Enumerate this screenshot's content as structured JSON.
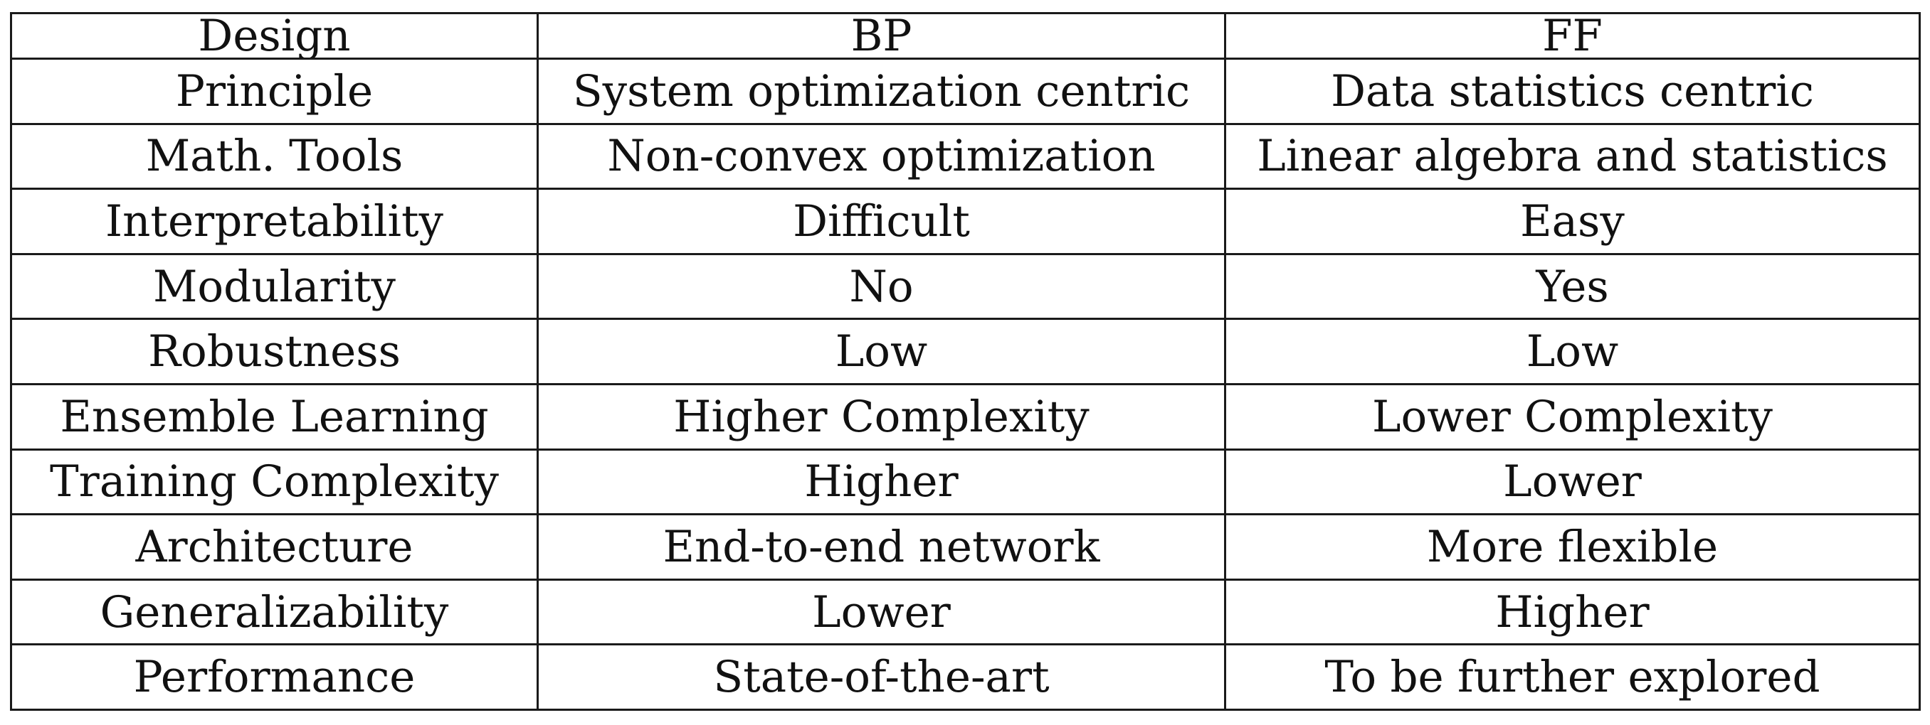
{
  "table": {
    "headers": [
      "Design",
      "BP",
      "FF"
    ],
    "rows": [
      [
        "Principle",
        "System optimization centric",
        "Data statistics centric"
      ],
      [
        "Math. Tools",
        "Non-convex optimization",
        "Linear algebra and statistics"
      ],
      [
        "Interpretability",
        "Difficult",
        "Easy"
      ],
      [
        "Modularity",
        "No",
        "Yes"
      ],
      [
        "Robustness",
        "Low",
        "Low"
      ],
      [
        "Ensemble Learning",
        "Higher Complexity",
        "Lower Complexity"
      ],
      [
        "Training Complexity",
        "Higher",
        "Lower"
      ],
      [
        "Architecture",
        "End-to-end network",
        "More flexible"
      ],
      [
        "Generalizability",
        "Lower",
        "Higher"
      ],
      [
        "Performance",
        "State-of-the-art",
        "To be further explored"
      ]
    ]
  }
}
